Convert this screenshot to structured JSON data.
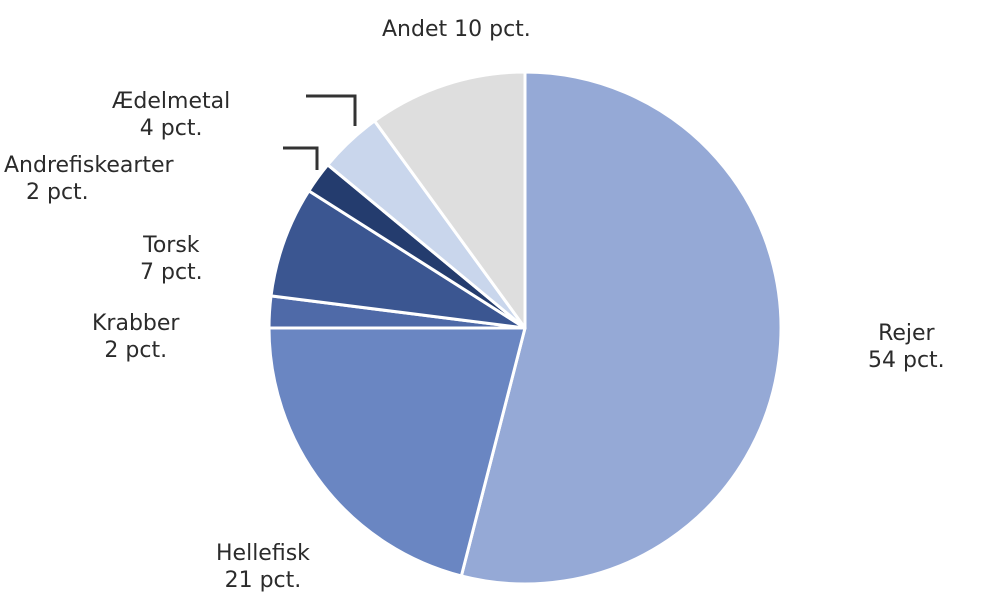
{
  "chart_data": {
    "type": "pie",
    "slices": [
      {
        "name": "Rejer",
        "value": 54,
        "value_label": "54 pct.",
        "color": "#95a9d6"
      },
      {
        "name": "Hellefisk",
        "value": 21,
        "value_label": "21 pct.",
        "color": "#6a86c2"
      },
      {
        "name": "Krabber",
        "value": 2,
        "value_label": "2 pct.",
        "color": "#4f6aa8"
      },
      {
        "name": "Torsk",
        "value": 7,
        "value_label": "7 pct.",
        "color": "#3b5691"
      },
      {
        "name": "Andrefiskearter",
        "value": 2,
        "value_label": "2 pct.",
        "color": "#243c6e"
      },
      {
        "name": "Ædelmetal",
        "value": 4,
        "value_label": "4 pct.",
        "color": "#c9d6ec"
      },
      {
        "name": "Andet",
        "value": 10,
        "value_label": "10 pct.",
        "color": "#dedede"
      }
    ],
    "start": "12 o'clock",
    "direction": "clockwise",
    "legend": "none",
    "labels": "outside slices with leader lines for small slices"
  }
}
